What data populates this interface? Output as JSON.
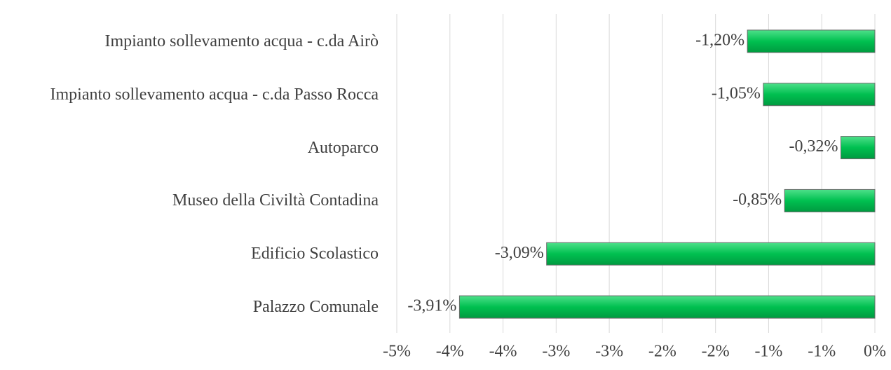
{
  "chart_data": {
    "type": "bar",
    "orientation": "horizontal",
    "categories": [
      "Impianto sollevamento acqua - c.da Airò",
      "Impianto sollevamento acqua - c.da Passo Rocca",
      "Autoparco",
      "Museo della Civiltà Contadina",
      "Edificio Scolastico",
      "Palazzo Comunale"
    ],
    "values": [
      -1.2,
      -1.05,
      -0.32,
      -0.85,
      -3.09,
      -3.91
    ],
    "value_labels": [
      "-1,20%",
      "-1,05%",
      "-0,32%",
      "-0,85%",
      "-3,09%",
      "-3,91%"
    ],
    "color": "#00c050",
    "xlim": [
      -4.5,
      0
    ],
    "xticks": [
      {
        "value": -4.5,
        "label": "-5%"
      },
      {
        "value": -4,
        "label": "-4%"
      },
      {
        "value": -3.5,
        "label": "-4%"
      },
      {
        "value": -3,
        "label": "-3%"
      },
      {
        "value": -2.5,
        "label": "-3%"
      },
      {
        "value": -2,
        "label": "-2%"
      },
      {
        "value": -1.5,
        "label": "-2%"
      },
      {
        "value": -1,
        "label": "-1%"
      },
      {
        "value": -0.5,
        "label": "-1%"
      },
      {
        "value": 0,
        "label": "0%"
      }
    ],
    "grid": true
  }
}
